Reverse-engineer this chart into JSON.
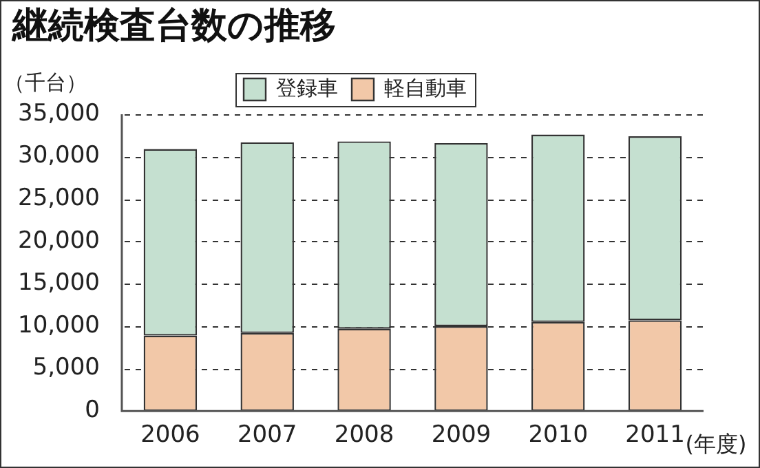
{
  "chart_data": {
    "type": "bar",
    "title": "継続検査台数の推移",
    "ylabel": "（千台）",
    "xlabel": "(年度)",
    "categories": [
      "2006",
      "2007",
      "2008",
      "2009",
      "2010",
      "2011"
    ],
    "stacked": true,
    "series": [
      {
        "name": "軽自動車",
        "color": "#f2c8a8",
        "values": [
          8900,
          9200,
          9700,
          10000,
          10500,
          10700
        ]
      },
      {
        "name": "登録車",
        "color": "#c5e0d0",
        "values": [
          22000,
          22500,
          22100,
          21600,
          22100,
          21700
        ]
      }
    ],
    "ylim": [
      0,
      35000
    ],
    "yticks": [
      {
        "value": 0,
        "label": "0"
      },
      {
        "value": 5000,
        "label": "5,000"
      },
      {
        "value": 10000,
        "label": "10,000"
      },
      {
        "value": 15000,
        "label": "15,000"
      },
      {
        "value": 20000,
        "label": "20,000"
      },
      {
        "value": 25000,
        "label": "25,000"
      },
      {
        "value": 30000,
        "label": "30,000"
      },
      {
        "value": 35000,
        "label": "35,000"
      }
    ],
    "grid": "y",
    "legend": "top"
  }
}
